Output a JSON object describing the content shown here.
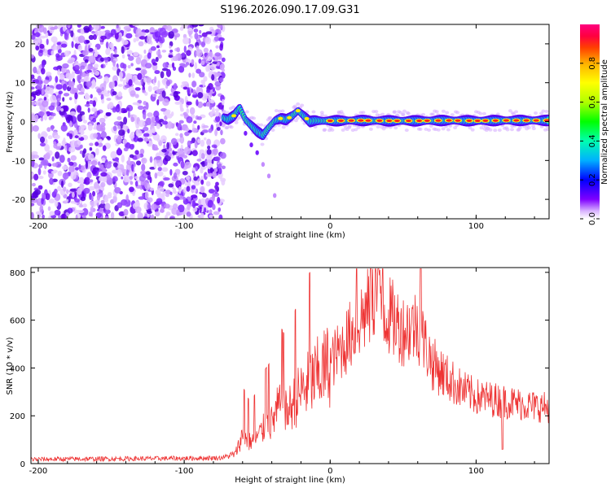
{
  "title": "S196.2026.090.17.09.G31",
  "chart_data": [
    {
      "type": "heatmap",
      "title": "S196.2026.090.17.09.G31",
      "xlabel": "Height of straight line (km)",
      "ylabel": "Frequency (Hz)",
      "xlim": [
        -205,
        150
      ],
      "ylim": [
        -25,
        25
      ],
      "xticks": [
        -200,
        -100,
        0,
        100
      ],
      "yticks": [
        -20,
        -10,
        0,
        10,
        20
      ],
      "noise_region_km": [
        -205,
        -73
      ],
      "ridge": {
        "x_km": [
          -73,
          -70,
          -66,
          -62,
          -58,
          -54,
          -50,
          -46,
          -42,
          -38,
          -34,
          -30,
          -26,
          -22,
          -18,
          -14,
          -10,
          -6,
          -2,
          0,
          20,
          40,
          60,
          80,
          100,
          120,
          150
        ],
        "freq_hz": [
          1.0,
          0.5,
          1.5,
          3.5,
          0.5,
          -1.0,
          -2.5,
          -3.5,
          -1.5,
          0.2,
          0.8,
          0.5,
          1.5,
          2.8,
          1.5,
          0.0,
          0.3,
          0.2,
          0.2,
          0.2,
          0.3,
          0.2,
          0.2,
          0.3,
          0.2,
          0.3,
          0.3
        ]
      },
      "branch": {
        "x_km": [
          -58,
          -54,
          -50,
          -46,
          -42,
          -38
        ],
        "freq_hz": [
          -3,
          -6,
          -8,
          -11,
          -14,
          -19
        ]
      },
      "colorbar": {
        "label": "Normalized spectral amplitude",
        "ticks": [
          0.0,
          0.2,
          0.4,
          0.6,
          0.8
        ],
        "tick_labels": [
          "0.0",
          "0.2",
          "0.4",
          "0.6",
          "0.8"
        ],
        "colors": [
          "#ffffff",
          "#d9b3ff",
          "#7f00ff",
          "#0000ff",
          "#00b0ff",
          "#00ffb0",
          "#00ff00",
          "#b0ff00",
          "#ffff00",
          "#ffb000",
          "#ff4000",
          "#ff0040",
          "#ff0080"
        ]
      }
    },
    {
      "type": "line",
      "xlabel": "Height of straight line (km)",
      "ylabel": "SNR (10 * v/v)",
      "xlim": [
        -205,
        150
      ],
      "ylim": [
        0,
        820
      ],
      "xticks": [
        -200,
        -100,
        0,
        100
      ],
      "yticks": [
        0,
        200,
        400,
        600,
        800
      ],
      "series": [
        {
          "name": "SNR",
          "color": "#ee3333",
          "x": [
            -205,
            -150,
            -100,
            -75,
            -65,
            -60,
            -55,
            -50,
            -45,
            -40,
            -35,
            -30,
            -20,
            -10,
            0,
            10,
            20,
            30,
            40,
            50,
            60,
            70,
            80,
            90,
            100,
            110,
            120,
            130,
            140,
            150
          ],
          "y": [
            18,
            20,
            22,
            24,
            40,
            120,
            90,
            110,
            150,
            170,
            240,
            210,
            300,
            360,
            420,
            500,
            600,
            680,
            620,
            560,
            580,
            420,
            360,
            310,
            280,
            270,
            260,
            250,
            240,
            235
          ]
        }
      ],
      "annotations": {
        "spikes_km": [
          -59,
          -56,
          -52,
          -44,
          -42,
          -33,
          -32,
          -24,
          -14,
          18,
          28,
          31,
          33,
          36,
          62,
          118
        ]
      }
    }
  ]
}
